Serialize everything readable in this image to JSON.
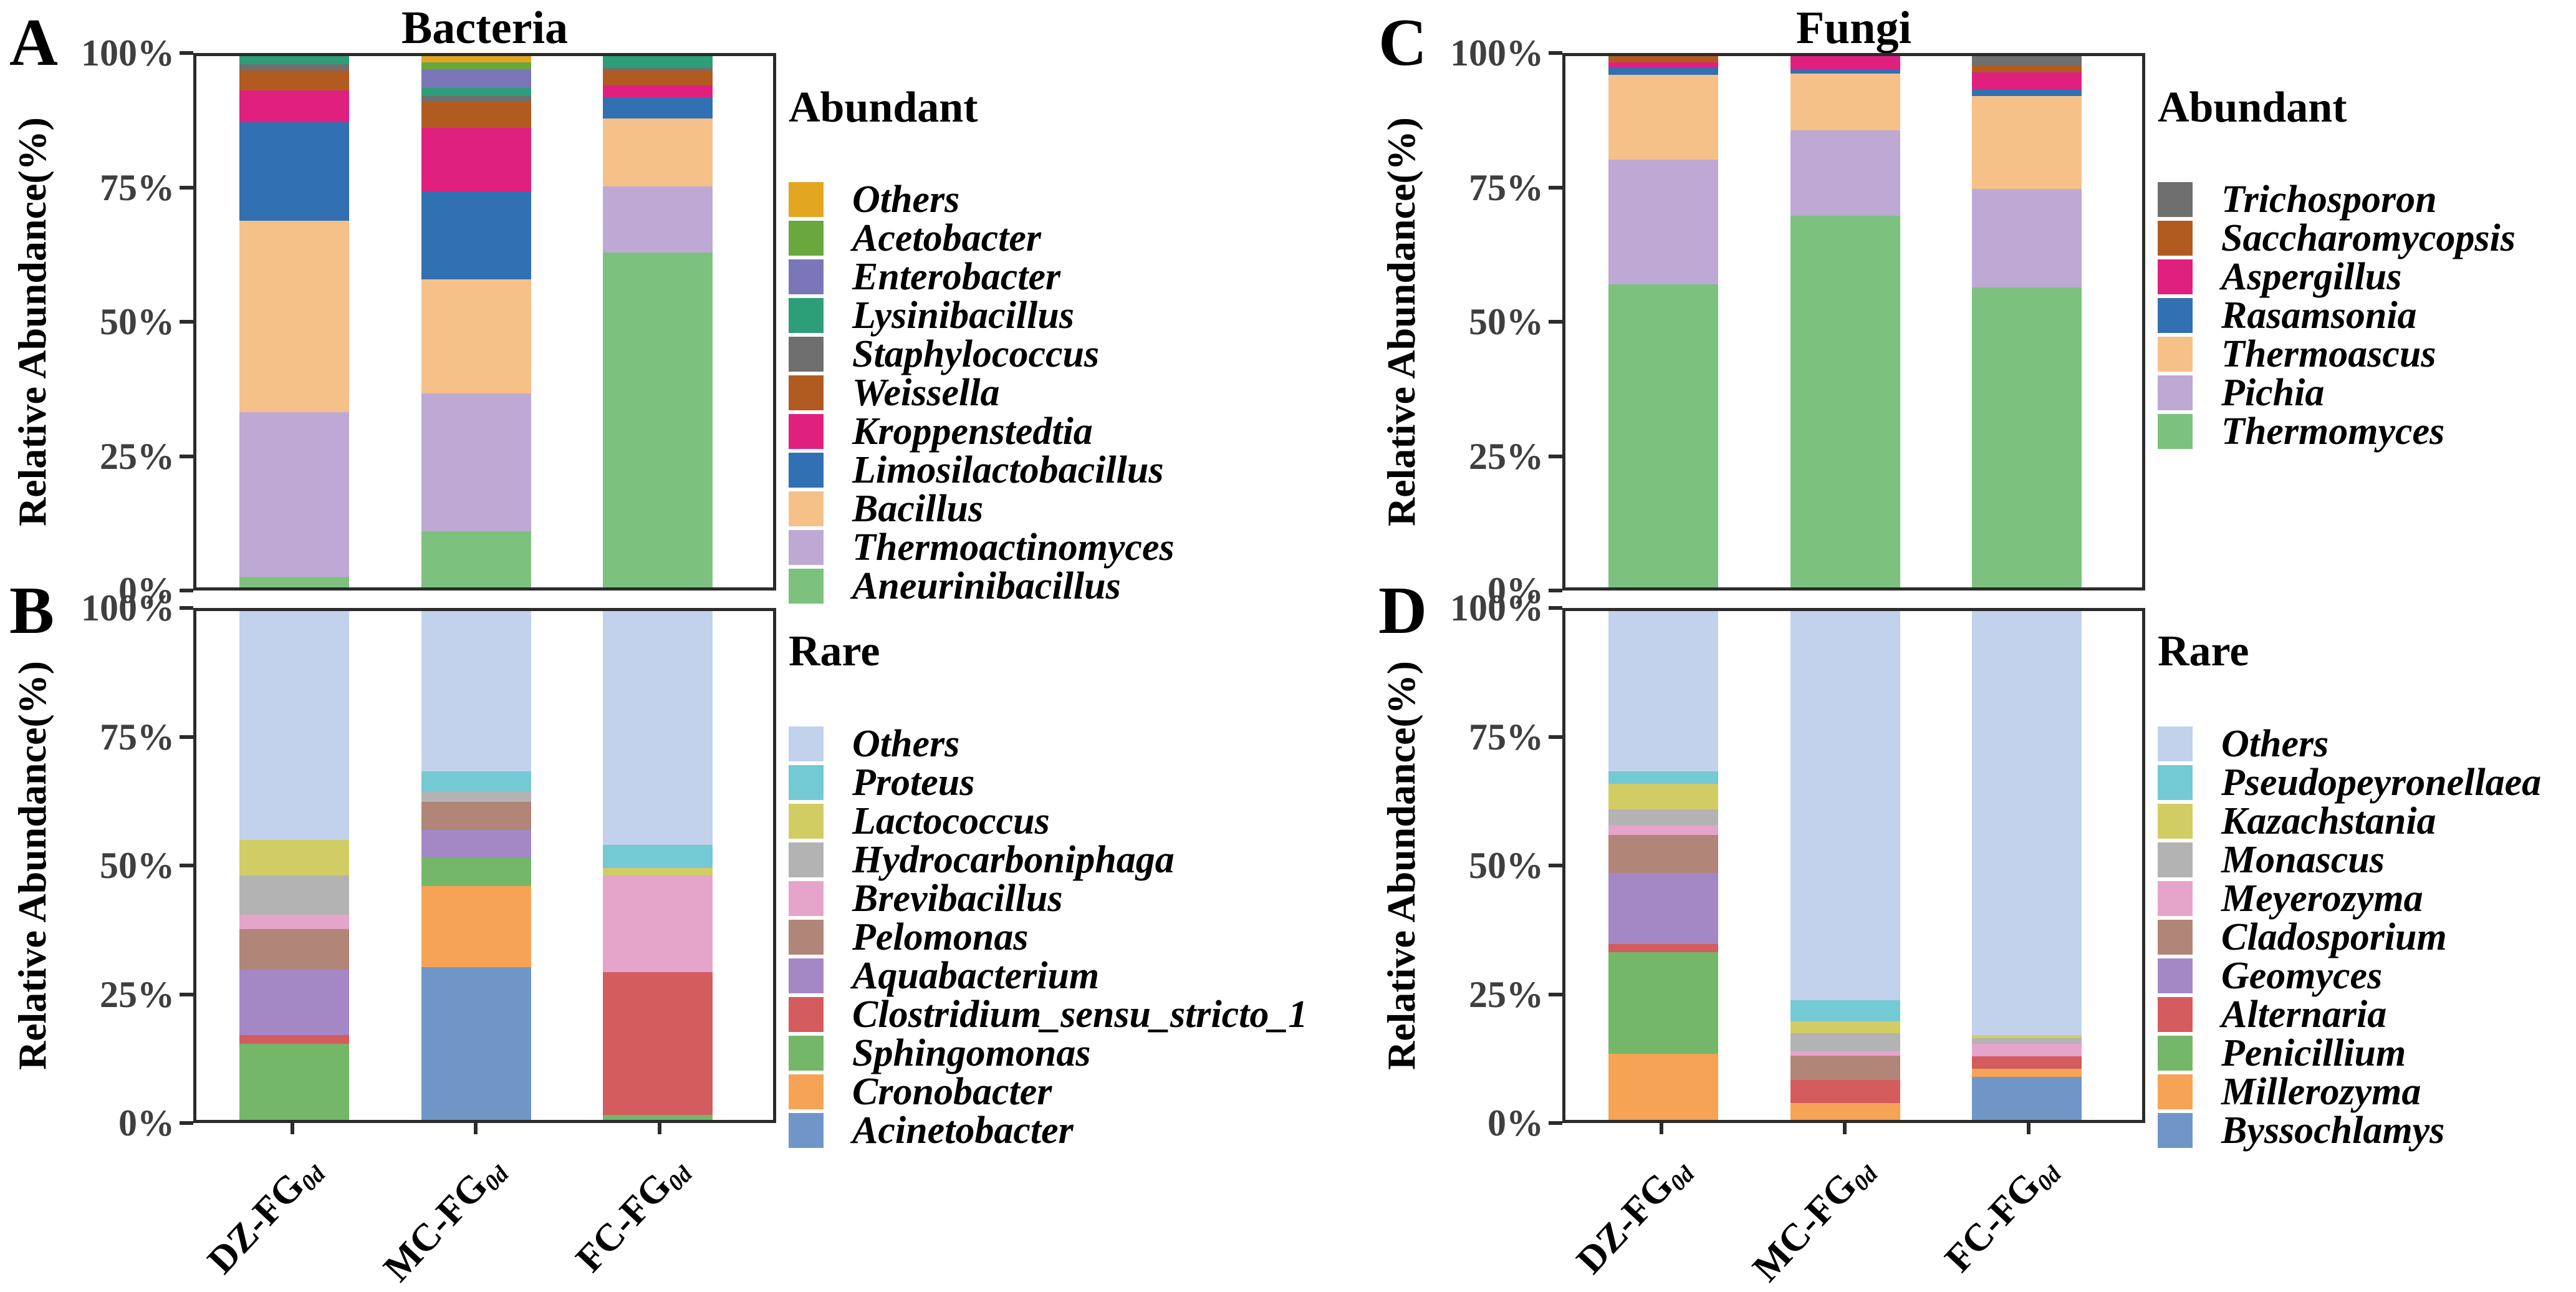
{
  "figure": {
    "background": "#ffffff",
    "axis_color": "#2b2b2b",
    "tick_label_color": "#3f3f3f"
  },
  "y_axis": {
    "label": "Relative Abundance(%)",
    "ticks": [
      "100%",
      "75%",
      "50%",
      "25%",
      "0%"
    ],
    "ylim": [
      0,
      100
    ]
  },
  "x_categories": [
    {
      "label": "DZ-FG",
      "subscript": "0d"
    },
    {
      "label": "MC-FG",
      "subscript": "0d"
    },
    {
      "label": "FC-FG",
      "subscript": "0d"
    }
  ],
  "chart_data": [
    {
      "id": "A",
      "panel_letter": "A",
      "column_title": "Bacteria",
      "legend_title": "Abundant",
      "type": "bar",
      "stacked": true,
      "units": "percent",
      "stack_order": "last_series_at_bottom",
      "legend_position": "right",
      "ylabel": "Relative Abundance(%)",
      "ylim": [
        0,
        100
      ],
      "categories": [
        "DZ-FG0d",
        "MC-FG0d",
        "FC-FG0d"
      ],
      "series": [
        {
          "name": "Others",
          "color": "#E2A621",
          "values": [
            0,
            1.2,
            0
          ]
        },
        {
          "name": "Acetobacter",
          "color": "#69A83C",
          "values": [
            0,
            1.3,
            0
          ]
        },
        {
          "name": "Enterobacter",
          "color": "#7B76B9",
          "values": [
            0,
            3.5,
            0
          ]
        },
        {
          "name": "Lysinibacillus",
          "color": "#2D9E77",
          "values": [
            1.5,
            1.5,
            2.2
          ]
        },
        {
          "name": "Staphylococcus",
          "color": "#6F6F6F",
          "values": [
            1.2,
            1.0,
            0.5
          ]
        },
        {
          "name": "Weissella",
          "color": "#B25B21",
          "values": [
            3.8,
            5.0,
            2.8
          ]
        },
        {
          "name": "Kroppenstedtia",
          "color": "#E0207F",
          "values": [
            6.0,
            12.0,
            2.2
          ]
        },
        {
          "name": "Limosilactobacillus",
          "color": "#3070B3",
          "values": [
            18.5,
            16.5,
            4.0
          ]
        },
        {
          "name": "Bacillus",
          "color": "#F5C189",
          "values": [
            36.0,
            21.5,
            12.8
          ]
        },
        {
          "name": "Thermoactinomyces",
          "color": "#BDA9D4",
          "values": [
            31.0,
            26.0,
            12.5
          ]
        },
        {
          "name": "Aneurinibacillus",
          "color": "#7DC17F",
          "values": [
            2.0,
            10.5,
            63.0
          ]
        }
      ]
    },
    {
      "id": "B",
      "panel_letter": "B",
      "column_title": "",
      "legend_title": "Rare",
      "type": "bar",
      "stacked": true,
      "units": "percent",
      "stack_order": "last_series_at_bottom",
      "legend_position": "right",
      "ylabel": "Relative Abundance(%)",
      "ylim": [
        0,
        100
      ],
      "categories": [
        "DZ-FG0d",
        "MC-FG0d",
        "FC-FG0d"
      ],
      "series": [
        {
          "name": "Others",
          "color": "#C3D2EC",
          "values": [
            45.0,
            31.5,
            46.0
          ]
        },
        {
          "name": "Proteus",
          "color": "#73C9D4",
          "values": [
            0,
            4.0,
            4.5
          ]
        },
        {
          "name": "Lactococcus",
          "color": "#D1CD64",
          "values": [
            7.0,
            0,
            1.5
          ]
        },
        {
          "name": "Hydrocarboniphaga",
          "color": "#B3B3B3",
          "values": [
            7.7,
            2.0,
            0
          ]
        },
        {
          "name": "Brevibacillus",
          "color": "#E5A4CA",
          "values": [
            2.8,
            0,
            19.0
          ]
        },
        {
          "name": "Pelomonas",
          "color": "#B18578",
          "values": [
            8.0,
            5.5,
            0
          ]
        },
        {
          "name": "Aquabacterium",
          "color": "#A388C5",
          "values": [
            12.9,
            5.5,
            0
          ]
        },
        {
          "name": "Clostridium_sensu_stricto_1",
          "color": "#D45B5E",
          "values": [
            1.6,
            0,
            28.0
          ]
        },
        {
          "name": "Sphingomonas",
          "color": "#74B769",
          "values": [
            15.0,
            5.5,
            1.0
          ]
        },
        {
          "name": "Cronobacter",
          "color": "#F6A355",
          "values": [
            0,
            16.0,
            0
          ]
        },
        {
          "name": "Acinetobacter",
          "color": "#7096C8",
          "values": [
            0,
            30.0,
            0
          ]
        }
      ]
    },
    {
      "id": "C",
      "panel_letter": "C",
      "column_title": "Fungi",
      "legend_title": "Abundant",
      "type": "bar",
      "stacked": true,
      "units": "percent",
      "stack_order": "last_series_at_bottom",
      "legend_position": "right",
      "ylabel": "Relative Abundance(%)",
      "ylim": [
        0,
        100
      ],
      "categories": [
        "DZ-FG0d",
        "MC-FG0d",
        "FC-FG0d"
      ],
      "series": [
        {
          "name": "Trichosporon",
          "color": "#6F6F6F",
          "values": [
            0,
            0,
            1.8
          ]
        },
        {
          "name": "Saccharomycopsis",
          "color": "#B25B21",
          "values": [
            1.2,
            0,
            1.2
          ]
        },
        {
          "name": "Aspergillus",
          "color": "#E0207F",
          "values": [
            1.0,
            2.5,
            3.3
          ]
        },
        {
          "name": "Rasamsonia",
          "color": "#3070B3",
          "values": [
            1.3,
            0.8,
            1.2
          ]
        },
        {
          "name": "Thermoascus",
          "color": "#F5C189",
          "values": [
            16.0,
            10.7,
            17.5
          ]
        },
        {
          "name": "Pichia",
          "color": "#BDA9D4",
          "values": [
            23.5,
            16.0,
            18.5
          ]
        },
        {
          "name": "Thermomyces",
          "color": "#7DC17F",
          "values": [
            57.0,
            70.0,
            56.5
          ]
        }
      ]
    },
    {
      "id": "D",
      "panel_letter": "D",
      "column_title": "",
      "legend_title": "Rare",
      "type": "bar",
      "stacked": true,
      "units": "percent",
      "stack_order": "last_series_at_bottom",
      "legend_position": "right",
      "ylabel": "Relative Abundance(%)",
      "ylim": [
        0,
        100
      ],
      "categories": [
        "DZ-FG0d",
        "MC-FG0d",
        "FC-FG0d"
      ],
      "series": [
        {
          "name": "Others",
          "color": "#C3D2EC",
          "values": [
            31.5,
            76.5,
            83.3
          ]
        },
        {
          "name": "Pseudopeyronellaea",
          "color": "#73C9D4",
          "values": [
            2.5,
            4.1,
            0
          ]
        },
        {
          "name": "Kazachstania",
          "color": "#D1CD64",
          "values": [
            5.0,
            2.4,
            0.7
          ]
        },
        {
          "name": "Monascus",
          "color": "#B3B3B3",
          "values": [
            3.0,
            3.5,
            1.0
          ]
        },
        {
          "name": "Meyerozyma",
          "color": "#E5A4CA",
          "values": [
            2.0,
            0.9,
            2.5
          ]
        },
        {
          "name": "Cladosporium",
          "color": "#B18578",
          "values": [
            7.5,
            4.8,
            0
          ]
        },
        {
          "name": "Geomyces",
          "color": "#A388C5",
          "values": [
            14.0,
            0,
            0
          ]
        },
        {
          "name": "Alternaria",
          "color": "#D45B5E",
          "values": [
            1.5,
            4.5,
            2.5
          ]
        },
        {
          "name": "Penicillium",
          "color": "#74B769",
          "values": [
            20.0,
            0,
            0
          ]
        },
        {
          "name": "Millerozyma",
          "color": "#F6A355",
          "values": [
            13.0,
            3.3,
            1.5
          ]
        },
        {
          "name": "Byssochlamys",
          "color": "#7096C8",
          "values": [
            0,
            0,
            8.5
          ]
        }
      ]
    }
  ]
}
